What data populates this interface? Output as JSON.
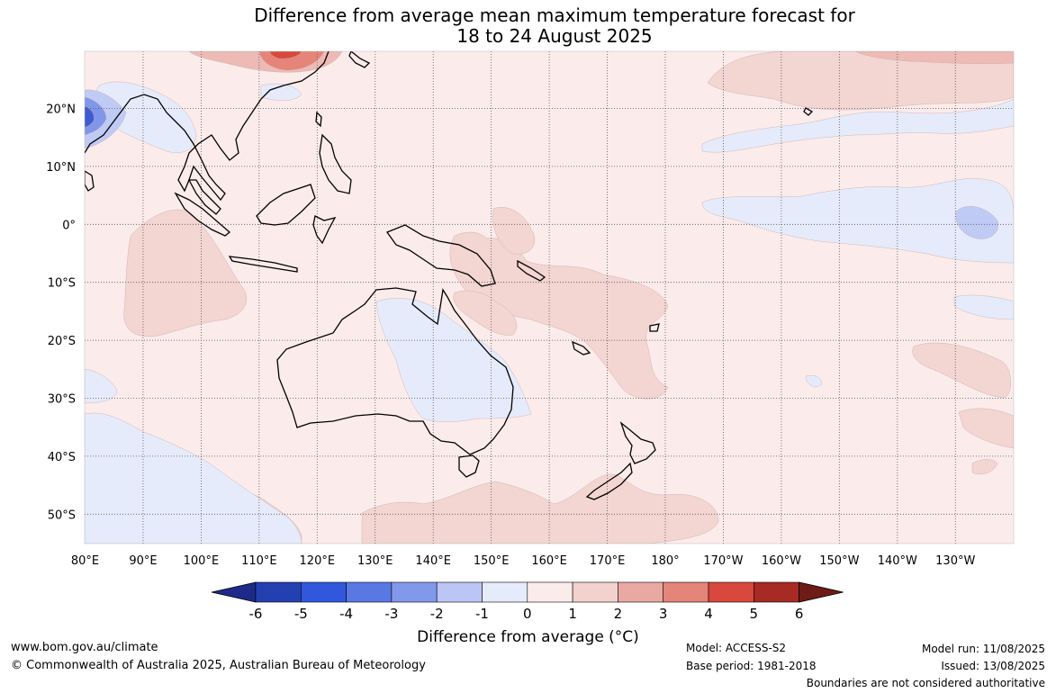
{
  "title_line1": "Difference from average mean maximum temperature forecast for",
  "title_line2": "18 to 24 August 2025",
  "latitude_labels": [
    "20°N",
    "10°N",
    "0°",
    "10°S",
    "20°S",
    "30°S",
    "40°S",
    "50°S"
  ],
  "longitude_labels": [
    "80°E",
    "90°E",
    "100°E",
    "110°E",
    "120°E",
    "130°E",
    "140°E",
    "150°E",
    "160°E",
    "170°E",
    "180°",
    "170°W",
    "160°W",
    "150°W",
    "140°W",
    "130°W"
  ],
  "colorbar": {
    "ticks": [
      "-6",
      "-5",
      "-4",
      "-3",
      "-2",
      "-1",
      "0",
      "1",
      "2",
      "3",
      "4",
      "5",
      "6"
    ],
    "colors": [
      "#1e2a8a",
      "#2440b0",
      "#3158dc",
      "#5a78e4",
      "#8298ea",
      "#bcc6f4",
      "#e6ebfb",
      "#fbeceb",
      "#f3d2ce",
      "#eaa8a2",
      "#e58478",
      "#d8483c",
      "#a82a24",
      "#6e1c18"
    ],
    "label": "Difference from average (°C)"
  },
  "map_colors": {
    "base": "#fbeceb",
    "warm1": "#f3d5d2",
    "warm2": "#edbab5",
    "warm3": "#e58478",
    "hot": "#d8483c",
    "cool1": "#e6ebfb",
    "cool2": "#c0cbf5",
    "cool3": "#8096e8",
    "cold": "#3e5ccf",
    "coast": "#000000",
    "border": "#888888"
  },
  "footer": {
    "url": "www.bom.gov.au/climate",
    "copyright": "© Commonwealth of Australia 2025, Australian Bureau of Meteorology",
    "model": "Model: ACCESS-S2",
    "base_period": "Base period: 1981-2018",
    "model_run": "Model run: 11/08/2025",
    "issued": "Issued: 13/08/2025",
    "disclaimer": "Boundaries are not considered authoritative"
  }
}
